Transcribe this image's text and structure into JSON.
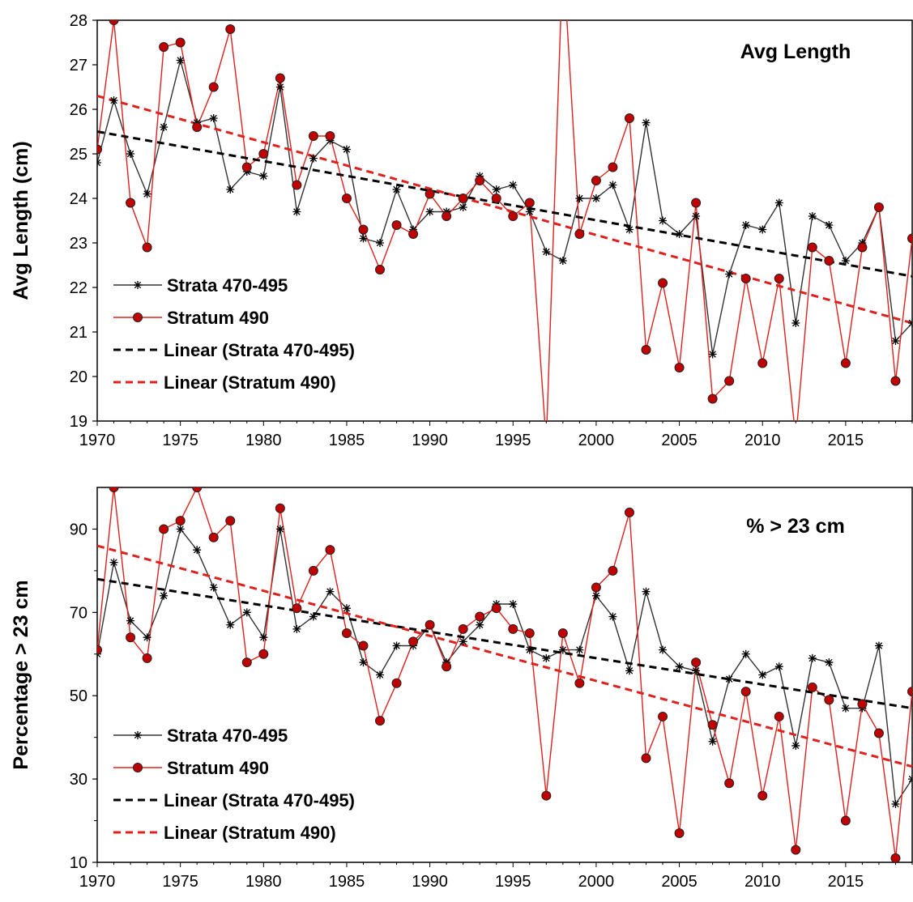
{
  "chart_data": [
    {
      "type": "line",
      "title": "Avg Length",
      "xlabel": "",
      "ylabel": "Avg Length (cm)",
      "xlim": [
        1970,
        2019
      ],
      "ylim": [
        19,
        28
      ],
      "x_ticks": [
        1970,
        1975,
        1980,
        1985,
        1990,
        1995,
        2000,
        2005,
        2010,
        2015
      ],
      "y_ticks": [
        19,
        20,
        21,
        22,
        23,
        24,
        25,
        26,
        27,
        28
      ],
      "grid": false,
      "legend_position": "bottom-left",
      "x": [
        1970,
        1971,
        1972,
        1973,
        1974,
        1975,
        1976,
        1977,
        1978,
        1979,
        1980,
        1981,
        1982,
        1983,
        1984,
        1985,
        1986,
        1987,
        1988,
        1989,
        1990,
        1991,
        1992,
        1993,
        1994,
        1995,
        1996,
        1997,
        1998,
        1999,
        2000,
        2001,
        2002,
        2003,
        2004,
        2005,
        2006,
        2007,
        2008,
        2009,
        2010,
        2011,
        2012,
        2013,
        2014,
        2015,
        2016,
        2017,
        2018,
        2019
      ],
      "series": [
        {
          "name": "Strata 470-495",
          "color": "#000000",
          "marker": "star",
          "values": [
            24.8,
            26.2,
            25.0,
            24.1,
            25.6,
            27.1,
            25.7,
            25.8,
            24.2,
            24.6,
            24.5,
            26.5,
            23.7,
            24.9,
            25.3,
            25.1,
            23.1,
            23.0,
            24.2,
            23.3,
            23.7,
            23.7,
            23.8,
            24.5,
            24.2,
            24.3,
            23.7,
            22.8,
            22.6,
            24.0,
            24.0,
            24.3,
            23.3,
            25.7,
            23.5,
            23.2,
            23.6,
            20.5,
            22.3,
            23.4,
            23.3,
            23.9,
            21.2,
            23.6,
            23.4,
            22.6,
            23.0,
            23.8,
            20.8,
            21.2
          ]
        },
        {
          "name": "Stratum 490",
          "color": "#c00000",
          "marker": "circle",
          "values": [
            25.1,
            28.0,
            23.9,
            22.9,
            27.4,
            27.5,
            25.6,
            26.5,
            27.8,
            24.7,
            25.0,
            26.7,
            24.3,
            25.4,
            25.4,
            24.0,
            23.3,
            22.4,
            23.4,
            23.2,
            24.1,
            23.6,
            24.0,
            24.4,
            24.0,
            23.6,
            23.9,
            18.5,
            29.5,
            23.2,
            24.4,
            24.7,
            25.8,
            20.6,
            22.1,
            20.2,
            23.9,
            19.5,
            19.9,
            22.2,
            20.3,
            22.2,
            18.6,
            22.9,
            22.6,
            20.3,
            22.9,
            23.8,
            19.9,
            23.1
          ]
        }
      ],
      "trendlines": [
        {
          "name": "Linear (Strata 470-495)",
          "color": "#000000",
          "from": [
            1970,
            25.5
          ],
          "to": [
            2019,
            22.25
          ]
        },
        {
          "name": "Linear (Stratum 490)",
          "color": "#e0201c",
          "from": [
            1970,
            26.3
          ],
          "to": [
            2019,
            21.2
          ]
        }
      ]
    },
    {
      "type": "line",
      "title": "% > 23 cm",
      "xlabel": "",
      "ylabel": "Percentage > 23 cm",
      "xlim": [
        1970,
        2019
      ],
      "ylim": [
        10,
        100
      ],
      "x_ticks": [
        1970,
        1975,
        1980,
        1985,
        1990,
        1995,
        2000,
        2005,
        2010,
        2015
      ],
      "y_ticks": [
        10,
        30,
        50,
        70,
        90
      ],
      "grid": false,
      "legend_position": "bottom-left",
      "x": [
        1970,
        1971,
        1972,
        1973,
        1974,
        1975,
        1976,
        1977,
        1978,
        1979,
        1980,
        1981,
        1982,
        1983,
        1984,
        1985,
        1986,
        1987,
        1988,
        1989,
        1990,
        1991,
        1992,
        1993,
        1994,
        1995,
        1996,
        1997,
        1998,
        1999,
        2000,
        2001,
        2002,
        2003,
        2004,
        2005,
        2006,
        2007,
        2008,
        2009,
        2010,
        2011,
        2012,
        2013,
        2014,
        2015,
        2016,
        2017,
        2018,
        2019
      ],
      "series": [
        {
          "name": "Strata 470-495",
          "color": "#000000",
          "marker": "star",
          "values": [
            60,
            82,
            68,
            64,
            74,
            90,
            85,
            76,
            67,
            70,
            64,
            90,
            66,
            69,
            75,
            71,
            58,
            55,
            62,
            62,
            67,
            58,
            63,
            67,
            72,
            72,
            61,
            59,
            61,
            61,
            74,
            69,
            56,
            75,
            61,
            57,
            56,
            39,
            54,
            60,
            55,
            57,
            38,
            59,
            58,
            47,
            47,
            62,
            24,
            30
          ]
        },
        {
          "name": "Stratum 490",
          "color": "#c00000",
          "marker": "circle",
          "values": [
            61,
            100,
            64,
            59,
            90,
            92,
            100,
            88,
            92,
            58,
            60,
            95,
            71,
            80,
            85,
            65,
            62,
            44,
            53,
            63,
            67,
            57,
            66,
            69,
            71,
            66,
            65,
            26,
            65,
            53,
            76,
            80,
            94,
            35,
            45,
            17,
            58,
            43,
            29,
            51,
            26,
            45,
            13,
            52,
            49,
            20,
            48,
            41,
            11,
            51
          ]
        }
      ],
      "trendlines": [
        {
          "name": "Linear (Strata 470-495)",
          "color": "#000000",
          "from": [
            1970,
            78
          ],
          "to": [
            2019,
            47
          ]
        },
        {
          "name": "Linear (Stratum 490)",
          "color": "#e0201c",
          "from": [
            1970,
            86
          ],
          "to": [
            2019,
            33
          ]
        }
      ]
    }
  ]
}
